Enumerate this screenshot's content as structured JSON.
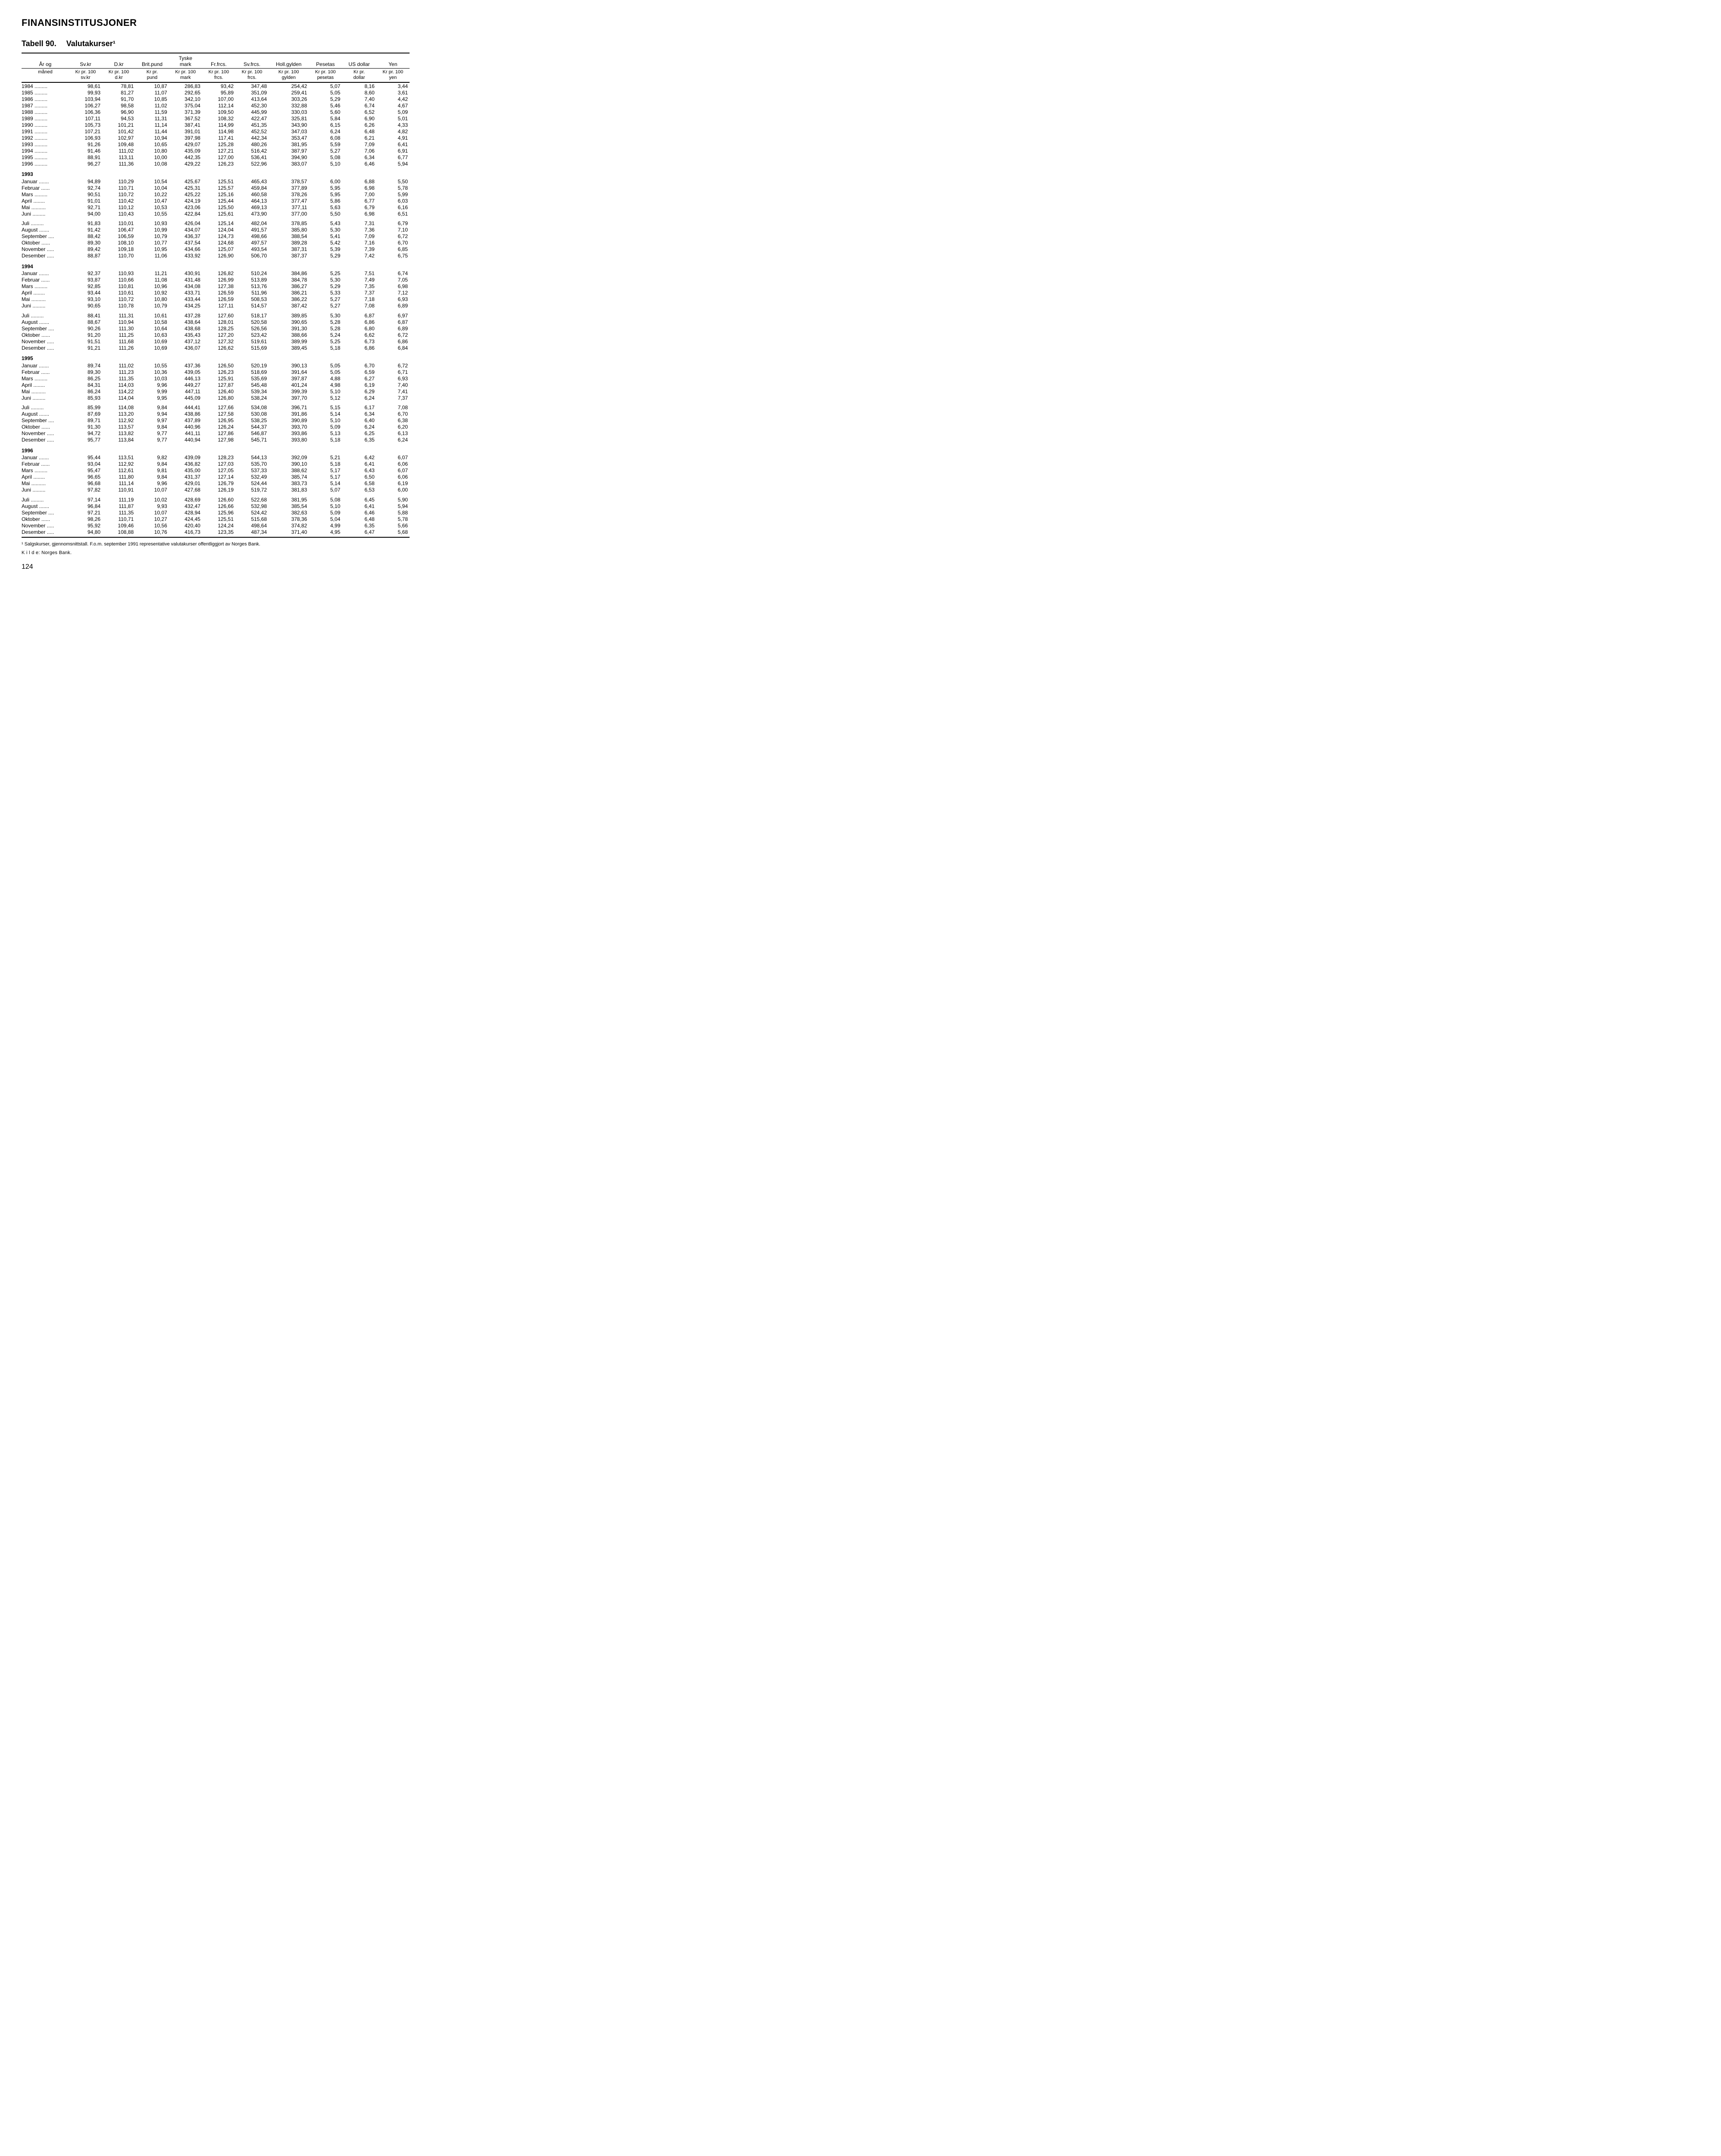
{
  "section_title": "FINANSINSTITUSJONER",
  "table_number": "Tabell 90.",
  "table_title": "Valutakurser¹",
  "rowhead_top": "År og",
  "rowhead_sub": "måned",
  "columns": [
    {
      "top": "Sv.kr",
      "sub": "Kr pr. 100\nsv.kr"
    },
    {
      "top": "D.kr",
      "sub": "Kr pr. 100\nd.kr"
    },
    {
      "top": "Brit.pund",
      "sub": "Kr pr.\npund"
    },
    {
      "top": "Tyske\nmark",
      "sub": "Kr pr. 100\nmark"
    },
    {
      "top": "Fr.frcs.",
      "sub": "Kr pr. 100\nfrcs."
    },
    {
      "top": "Sv.frcs.",
      "sub": "Kr pr. 100\nfrcs."
    },
    {
      "top": "Holl.gylden",
      "sub": "Kr pr. 100\ngylden"
    },
    {
      "top": "Pesetas",
      "sub": "Kr pr. 100\npesetas"
    },
    {
      "top": "US dollar",
      "sub": "Kr pr.\ndollar"
    },
    {
      "top": "Yen",
      "sub": "Kr pr. 100\nyen"
    }
  ],
  "blocks": [
    {
      "type": "rows",
      "rows": [
        {
          "label": "1984",
          "v": [
            "98,61",
            "78,81",
            "10,87",
            "286,83",
            "93,42",
            "347,48",
            "254,42",
            "5,07",
            "8,16",
            "3,44"
          ]
        },
        {
          "label": "1985",
          "v": [
            "99,93",
            "81,27",
            "11,07",
            "292,65",
            "95,89",
            "351,09",
            "259,41",
            "5,05",
            "8,60",
            "3,61"
          ]
        },
        {
          "label": "1986",
          "v": [
            "103,94",
            "91,70",
            "10,85",
            "342,10",
            "107,00",
            "413,64",
            "303,26",
            "5,29",
            "7,40",
            "4,42"
          ]
        },
        {
          "label": "1987",
          "v": [
            "106,27",
            "98,58",
            "11,02",
            "375,04",
            "112,14",
            "452,30",
            "332,88",
            "5,46",
            "6,74",
            "4,67"
          ]
        },
        {
          "label": "1988",
          "v": [
            "106,36",
            "96,90",
            "11,59",
            "371,39",
            "109,50",
            "445,99",
            "330,03",
            "5,60",
            "6,52",
            "5,09"
          ]
        },
        {
          "label": "1989",
          "v": [
            "107,11",
            "94,53",
            "11,31",
            "367,52",
            "108,32",
            "422,47",
            "325,81",
            "5,84",
            "6,90",
            "5,01"
          ]
        },
        {
          "label": "1990",
          "v": [
            "105,73",
            "101,21",
            "11,14",
            "387,41",
            "114,99",
            "451,35",
            "343,90",
            "6,15",
            "6,26",
            "4,33"
          ]
        },
        {
          "label": "1991",
          "v": [
            "107,21",
            "101,42",
            "11,44",
            "391,01",
            "114,98",
            "452,52",
            "347,03",
            "6,24",
            "6,48",
            "4,82"
          ]
        },
        {
          "label": "1992",
          "v": [
            "106,93",
            "102,97",
            "10,94",
            "397,98",
            "117,41",
            "442,34",
            "353,47",
            "6,08",
            "6,21",
            "4,91"
          ]
        },
        {
          "label": "1993",
          "v": [
            "91,26",
            "109,48",
            "10,65",
            "429,07",
            "125,28",
            "480,26",
            "381,95",
            "5,59",
            "7,09",
            "6,41"
          ]
        },
        {
          "label": "1994",
          "v": [
            "91,46",
            "111,02",
            "10,80",
            "435,09",
            "127,21",
            "516,42",
            "387,97",
            "5,27",
            "7,06",
            "6,91"
          ]
        },
        {
          "label": "1995",
          "v": [
            "88,91",
            "113,11",
            "10,00",
            "442,35",
            "127,00",
            "536,41",
            "394,90",
            "5,08",
            "6,34",
            "6,77"
          ]
        },
        {
          "label": "1996",
          "v": [
            "96,27",
            "111,36",
            "10,08",
            "429,22",
            "126,23",
            "522,96",
            "383,07",
            "5,10",
            "6,46",
            "5,94"
          ]
        }
      ]
    },
    {
      "type": "year",
      "label": "1993"
    },
    {
      "type": "rows",
      "rows": [
        {
          "label": "Januar",
          "v": [
            "94,89",
            "110,29",
            "10,54",
            "425,67",
            "125,51",
            "465,43",
            "378,57",
            "6,00",
            "6,88",
            "5,50"
          ]
        },
        {
          "label": "Februar",
          "v": [
            "92,74",
            "110,71",
            "10,04",
            "425,31",
            "125,57",
            "459,84",
            "377,89",
            "5,95",
            "6,98",
            "5,78"
          ]
        },
        {
          "label": "Mars",
          "v": [
            "90,51",
            "110,72",
            "10,22",
            "425,22",
            "125,16",
            "460,58",
            "378,26",
            "5,95",
            "7,00",
            "5,99"
          ]
        },
        {
          "label": "April",
          "v": [
            "91,01",
            "110,42",
            "10,47",
            "424,19",
            "125,44",
            "464,13",
            "377,47",
            "5,86",
            "6,77",
            "6,03"
          ]
        },
        {
          "label": "Mai",
          "v": [
            "92,71",
            "110,12",
            "10,53",
            "423,06",
            "125,50",
            "469,13",
            "377,11",
            "5,63",
            "6,79",
            "6,16"
          ]
        },
        {
          "label": "Juni",
          "v": [
            "94,00",
            "110,43",
            "10,55",
            "422,84",
            "125,61",
            "473,90",
            "377,00",
            "5,50",
            "6,98",
            "6,51"
          ]
        }
      ]
    },
    {
      "type": "rows",
      "gap": true,
      "rows": [
        {
          "label": "Juli",
          "v": [
            "91,83",
            "110,01",
            "10,93",
            "426,04",
            "125,14",
            "482,04",
            "378,85",
            "5,43",
            "7,31",
            "6,79"
          ]
        },
        {
          "label": "August",
          "v": [
            "91,42",
            "106,47",
            "10,99",
            "434,07",
            "124,04",
            "491,57",
            "385,80",
            "5,30",
            "7,36",
            "7,10"
          ]
        },
        {
          "label": "September",
          "v": [
            "88,42",
            "106,59",
            "10,79",
            "436,37",
            "124,73",
            "498,66",
            "388,54",
            "5,41",
            "7,09",
            "6,72"
          ]
        },
        {
          "label": "Oktober",
          "v": [
            "89,30",
            "108,10",
            "10,77",
            "437,54",
            "124,68",
            "497,57",
            "389,28",
            "5,42",
            "7,16",
            "6,70"
          ]
        },
        {
          "label": "November",
          "v": [
            "89,42",
            "109,18",
            "10,95",
            "434,66",
            "125,07",
            "493,54",
            "387,31",
            "5,39",
            "7,39",
            "6,85"
          ]
        },
        {
          "label": "Desember",
          "v": [
            "88,87",
            "110,70",
            "11,06",
            "433,92",
            "126,90",
            "506,70",
            "387,37",
            "5,29",
            "7,42",
            "6,75"
          ]
        }
      ]
    },
    {
      "type": "year",
      "label": "1994"
    },
    {
      "type": "rows",
      "rows": [
        {
          "label": "Januar",
          "v": [
            "92,37",
            "110,93",
            "11,21",
            "430,91",
            "126,82",
            "510,24",
            "384,86",
            "5,25",
            "7,51",
            "6,74"
          ]
        },
        {
          "label": "Februar",
          "v": [
            "93,87",
            "110,66",
            "11,08",
            "431,48",
            "126,99",
            "513,89",
            "384,78",
            "5,30",
            "7,49",
            "7,05"
          ]
        },
        {
          "label": "Mars",
          "v": [
            "92,85",
            "110,81",
            "10,96",
            "434,08",
            "127,38",
            "513,76",
            "386,27",
            "5,29",
            "7,35",
            "6,98"
          ]
        },
        {
          "label": "April",
          "v": [
            "93,44",
            "110,61",
            "10,92",
            "433,71",
            "126,59",
            "511,96",
            "386,21",
            "5,33",
            "7,37",
            "7,12"
          ]
        },
        {
          "label": "Mai",
          "v": [
            "93,10",
            "110,72",
            "10,80",
            "433,44",
            "126,59",
            "508,53",
            "386,22",
            "5,27",
            "7,18",
            "6,93"
          ]
        },
        {
          "label": "Juni",
          "v": [
            "90,65",
            "110,78",
            "10,79",
            "434,25",
            "127,11",
            "514,57",
            "387,42",
            "5,27",
            "7,08",
            "6,89"
          ]
        }
      ]
    },
    {
      "type": "rows",
      "gap": true,
      "rows": [
        {
          "label": "Juli",
          "v": [
            "88,41",
            "111,31",
            "10,61",
            "437,28",
            "127,60",
            "518,17",
            "389,85",
            "5,30",
            "6,87",
            "6,97"
          ]
        },
        {
          "label": "August",
          "v": [
            "88,67",
            "110,94",
            "10,58",
            "438,64",
            "128,01",
            "520,58",
            "390,65",
            "5,28",
            "6,86",
            "6,87"
          ]
        },
        {
          "label": "September",
          "v": [
            "90,26",
            "111,30",
            "10,64",
            "438,68",
            "128,25",
            "526,56",
            "391,30",
            "5,28",
            "6,80",
            "6,89"
          ]
        },
        {
          "label": "Oktober",
          "v": [
            "91,20",
            "111,25",
            "10,63",
            "435,43",
            "127,20",
            "523,42",
            "388,66",
            "5,24",
            "6,62",
            "6,72"
          ]
        },
        {
          "label": "November",
          "v": [
            "91,51",
            "111,68",
            "10,69",
            "437,12",
            "127,32",
            "519,61",
            "389,99",
            "5,25",
            "6,73",
            "6,86"
          ]
        },
        {
          "label": "Desember",
          "v": [
            "91,21",
            "111,26",
            "10,69",
            "436,07",
            "126,62",
            "515,69",
            "389,45",
            "5,18",
            "6,86",
            "6,84"
          ]
        }
      ]
    },
    {
      "type": "year",
      "label": "1995"
    },
    {
      "type": "rows",
      "rows": [
        {
          "label": "Januar",
          "v": [
            "89,74",
            "111,02",
            "10,55",
            "437,36",
            "126,50",
            "520,19",
            "390,13",
            "5,05",
            "6,70",
            "6,72"
          ]
        },
        {
          "label": "Februar",
          "v": [
            "89,30",
            "111,23",
            "10,36",
            "439,05",
            "126,23",
            "518,69",
            "391,64",
            "5,05",
            "6,59",
            "6,71"
          ]
        },
        {
          "label": "Mars",
          "v": [
            "86,25",
            "111,35",
            "10,03",
            "446,13",
            "125,91",
            "535,69",
            "397,87",
            "4,88",
            "6,27",
            "6,93"
          ]
        },
        {
          "label": "April",
          "v": [
            "84,31",
            "114,03",
            "9,96",
            "449,27",
            "127,87",
            "545,48",
            "401,24",
            "4,98",
            "6,19",
            "7,40"
          ]
        },
        {
          "label": "Mai",
          "v": [
            "86,24",
            "114,22",
            "9,99",
            "447,11",
            "126,40",
            "539,34",
            "399,39",
            "5,10",
            "6,29",
            "7,41"
          ]
        },
        {
          "label": "Juni",
          "v": [
            "85,93",
            "114,04",
            "9,95",
            "445,09",
            "126,80",
            "538,24",
            "397,70",
            "5,12",
            "6,24",
            "7,37"
          ]
        }
      ]
    },
    {
      "type": "rows",
      "gap": true,
      "rows": [
        {
          "label": "Juli",
          "v": [
            "85,99",
            "114,08",
            "9,84",
            "444,41",
            "127,66",
            "534,08",
            "396,71",
            "5,15",
            "6,17",
            "7,08"
          ]
        },
        {
          "label": "August",
          "v": [
            "87,69",
            "113,20",
            "9,94",
            "438,86",
            "127,58",
            "530,08",
            "391,86",
            "5,14",
            "6,34",
            "6,70"
          ]
        },
        {
          "label": "September",
          "v": [
            "89,71",
            "112,92",
            "9,97",
            "437,89",
            "126,95",
            "538,25",
            "390,89",
            "5,10",
            "6,40",
            "6,38"
          ]
        },
        {
          "label": "Oktober",
          "v": [
            "91,30",
            "113,57",
            "9,84",
            "440,96",
            "126,24",
            "544,37",
            "393,70",
            "5,09",
            "6,24",
            "6,20"
          ]
        },
        {
          "label": "November",
          "v": [
            "94,72",
            "113,82",
            "9,77",
            "441,11",
            "127,86",
            "546,87",
            "393,86",
            "5,13",
            "6,25",
            "6,13"
          ]
        },
        {
          "label": "Desember",
          "v": [
            "95,77",
            "113,84",
            "9,77",
            "440,94",
            "127,98",
            "545,71",
            "393,80",
            "5,18",
            "6,35",
            "6,24"
          ]
        }
      ]
    },
    {
      "type": "year",
      "label": "1996"
    },
    {
      "type": "rows",
      "rows": [
        {
          "label": "Januar",
          "v": [
            "95,44",
            "113,51",
            "9,82",
            "439,09",
            "128,23",
            "544,13",
            "392,09",
            "5,21",
            "6,42",
            "6,07"
          ]
        },
        {
          "label": "Februar",
          "v": [
            "93,04",
            "112,92",
            "9,84",
            "436,82",
            "127,03",
            "535,70",
            "390,10",
            "5,18",
            "6,41",
            "6,06"
          ]
        },
        {
          "label": "Mars",
          "v": [
            "95,47",
            "112,61",
            "9,81",
            "435,00",
            "127,05",
            "537,33",
            "388,62",
            "5,17",
            "6,43",
            "6,07"
          ]
        },
        {
          "label": "April",
          "v": [
            "96,65",
            "111,80",
            "9,84",
            "431,37",
            "127,14",
            "532,49",
            "385,74",
            "5,17",
            "6,50",
            "6,06"
          ]
        },
        {
          "label": "Mai",
          "v": [
            "96,68",
            "111,14",
            "9,96",
            "429,01",
            "126,79",
            "524,44",
            "383,73",
            "5,14",
            "6,58",
            "6,19"
          ]
        },
        {
          "label": "Juni",
          "v": [
            "97,82",
            "110,91",
            "10,07",
            "427,68",
            "126,19",
            "519,72",
            "381,83",
            "5,07",
            "6,53",
            "6,00"
          ]
        }
      ]
    },
    {
      "type": "rows",
      "gap": true,
      "last": true,
      "rows": [
        {
          "label": "Juli",
          "v": [
            "97,14",
            "111,19",
            "10,02",
            "428,69",
            "126,60",
            "522,68",
            "381,95",
            "5,08",
            "6,45",
            "5,90"
          ]
        },
        {
          "label": "August",
          "v": [
            "96,84",
            "111,87",
            "9,93",
            "432,47",
            "126,66",
            "532,98",
            "385,54",
            "5,10",
            "6,41",
            "5,94"
          ]
        },
        {
          "label": "September",
          "v": [
            "97,21",
            "111,35",
            "10,07",
            "428,94",
            "125,96",
            "524,42",
            "382,63",
            "5,09",
            "6,46",
            "5,88"
          ]
        },
        {
          "label": "Oktober",
          "v": [
            "98,26",
            "110,71",
            "10,27",
            "424,45",
            "125,51",
            "515,68",
            "378,36",
            "5,04",
            "6,48",
            "5,78"
          ]
        },
        {
          "label": "November",
          "v": [
            "95,92",
            "109,46",
            "10,56",
            "420,40",
            "124,24",
            "498,64",
            "374,82",
            "4,99",
            "6,35",
            "5,66"
          ]
        },
        {
          "label": "Desember",
          "v": [
            "94,80",
            "108,88",
            "10,76",
            "416,73",
            "123,35",
            "487,34",
            "371,40",
            "4,95",
            "6,47",
            "5,68"
          ]
        }
      ]
    }
  ],
  "footnote": "¹ Salgskurser, gjennomsnittstall. F.o.m. september 1991 representative valutakurser offentliggjort av Norges Bank.",
  "source_label": "K i l d e: Norges Bank.",
  "page_number": "124",
  "label_cell_width_ch": 13
}
